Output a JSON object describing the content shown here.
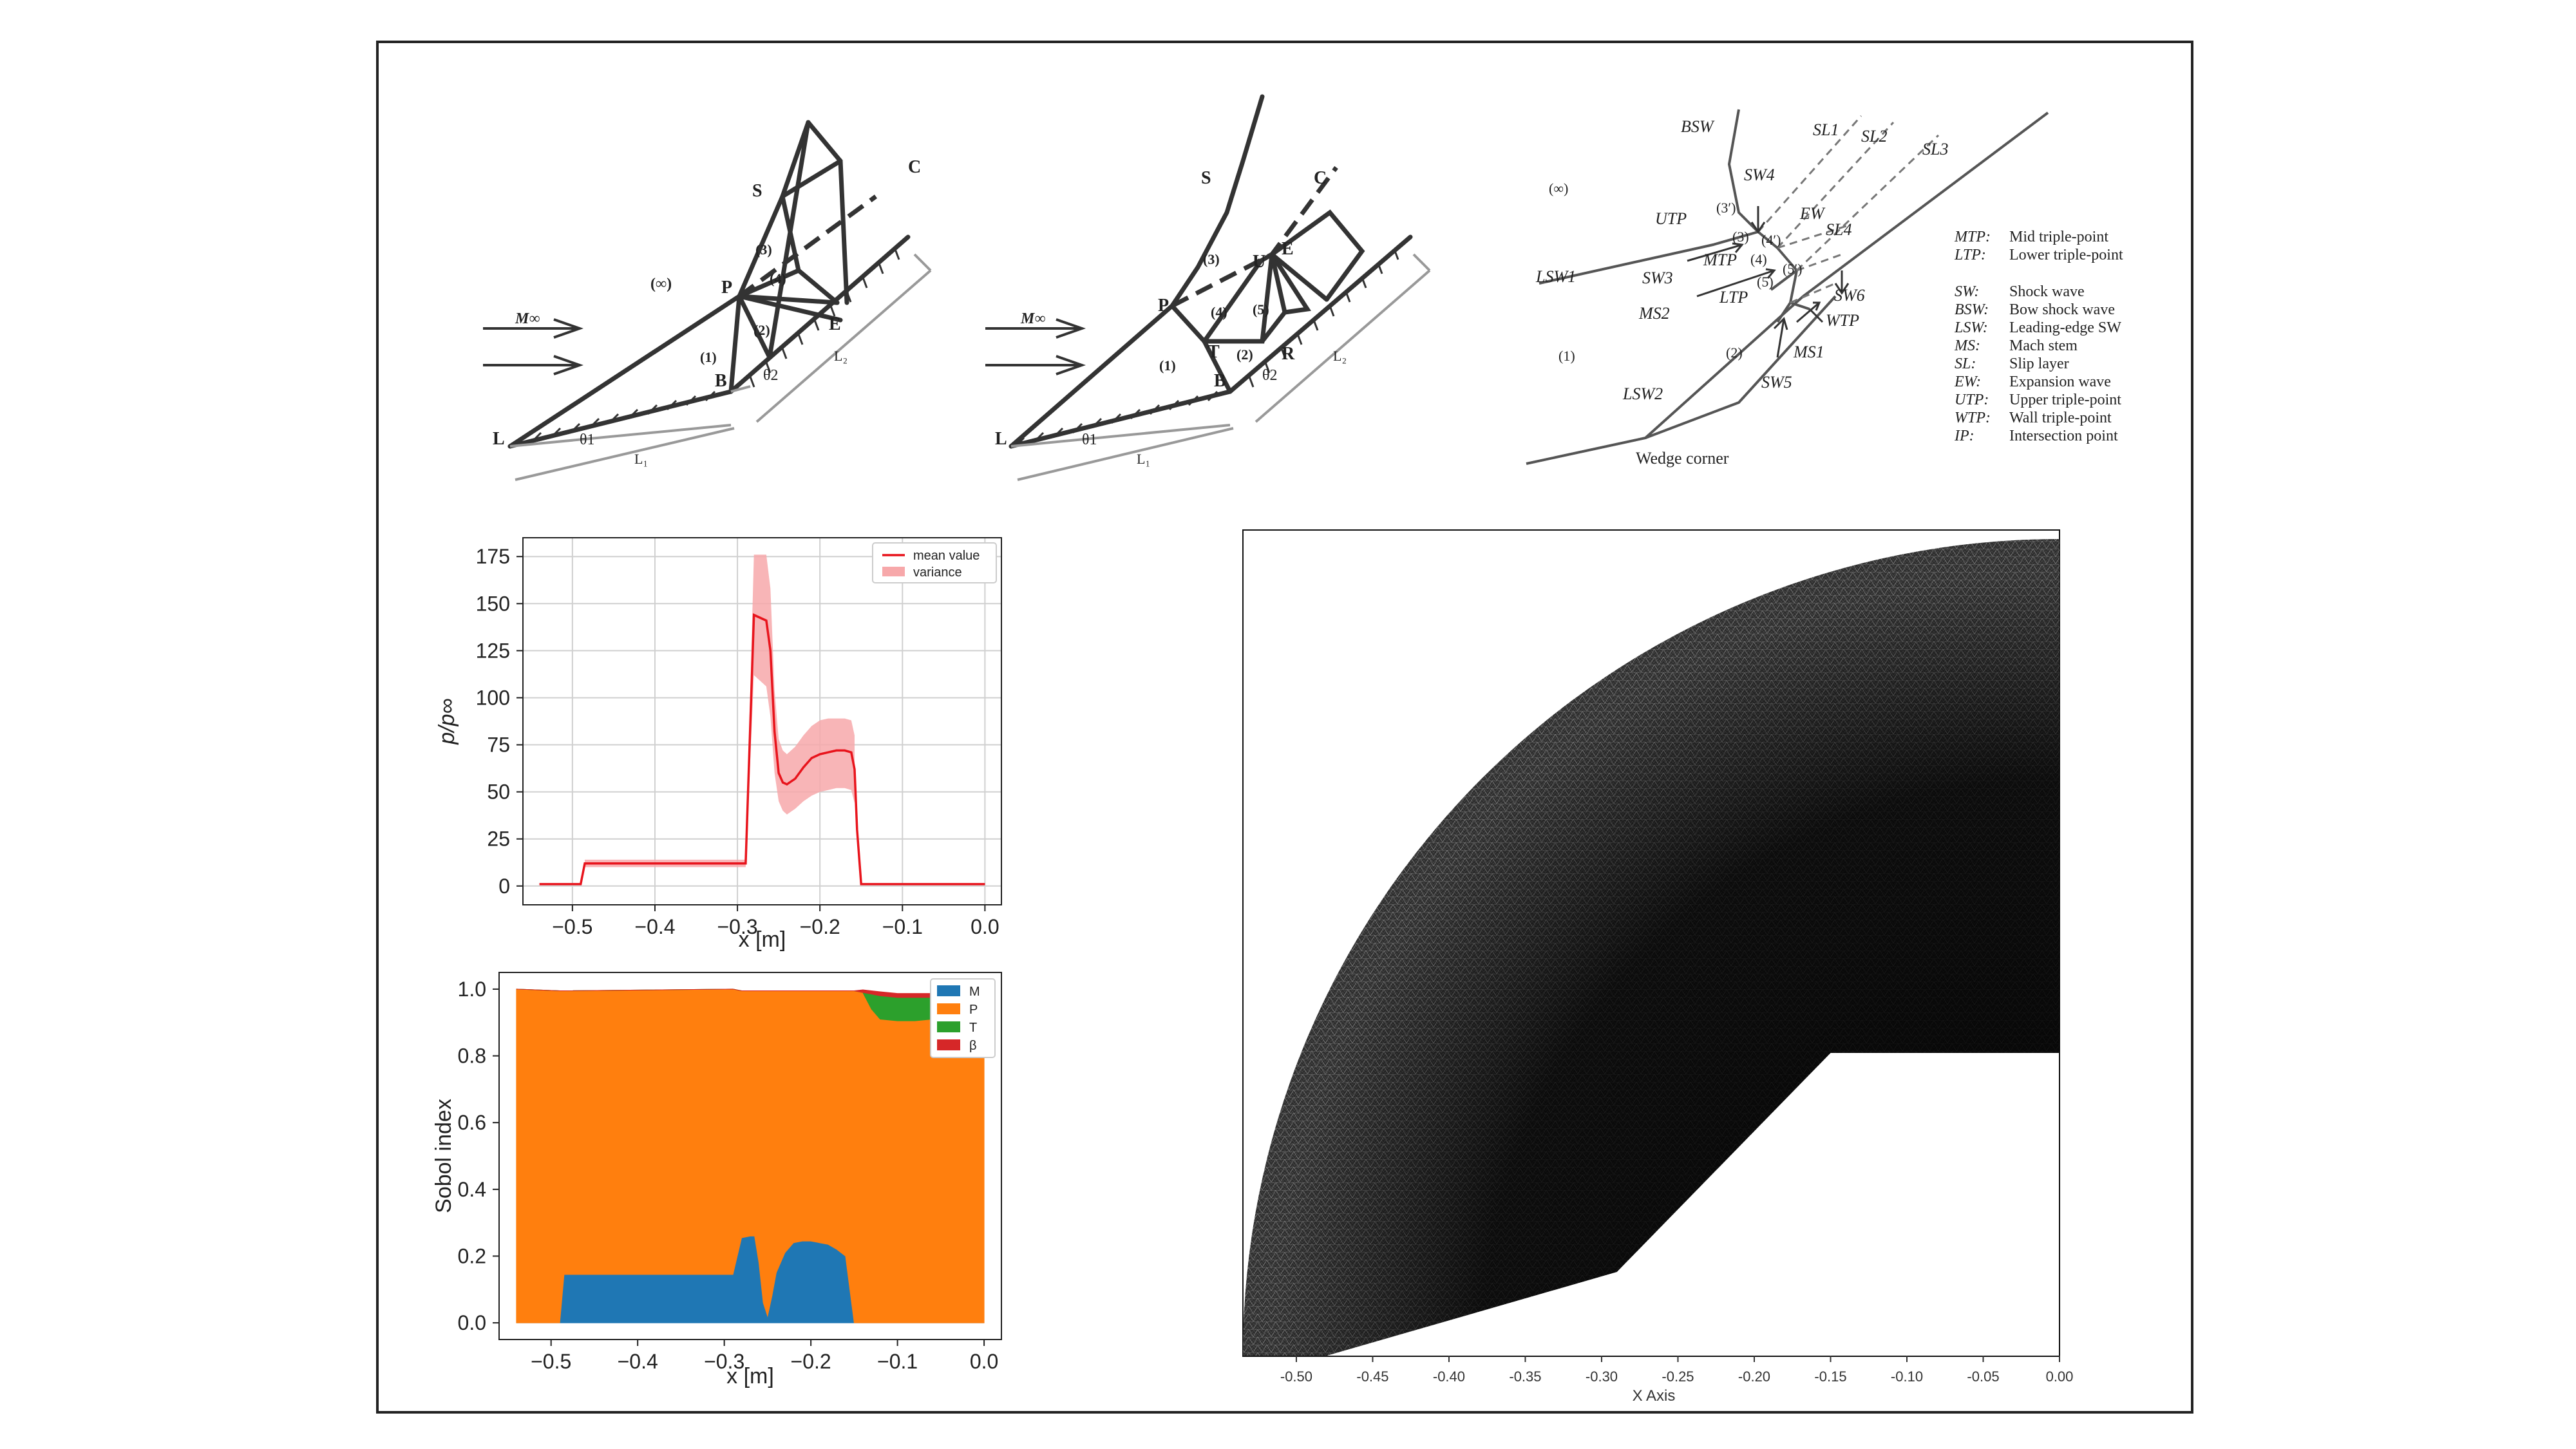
{
  "diagram1": {
    "labels": {
      "S": "S",
      "C": "C",
      "P": "P",
      "E": "E",
      "B": "B",
      "L": "L",
      "r3": "(3)",
      "r4": "(4)",
      "r1": "(1)",
      "r2": "(2)",
      "inf": "(∞)",
      "minf": "M∞",
      "theta1": "θ1",
      "theta2": "θ2",
      "L1": "L₁",
      "L2": "L₂"
    }
  },
  "diagram2": {
    "labels": {
      "S": "S",
      "C": "C",
      "P": "P",
      "U": "U",
      "E": "E",
      "T": "T",
      "R": "R",
      "B": "B",
      "L": "L",
      "r3": "(3)",
      "r4": "(4)",
      "r5": "(5)",
      "r1": "(1)",
      "r2": "(2)",
      "inf": "(∞)",
      "minf": "M∞",
      "theta1": "θ1",
      "theta2": "θ2",
      "L1": "L₁",
      "L2": "L₂"
    }
  },
  "diagram3": {
    "labels": {
      "BSW": "BSW",
      "SW4": "SW4",
      "SL1": "SL1",
      "SL2": "SL2",
      "SL3": "SL3",
      "inf": "(∞)",
      "UTP": "UTP",
      "r3p": "(3′)",
      "r4p": "(4′)",
      "EW": "EW",
      "SL4": "SL4",
      "r3": "(3)",
      "r4": "(4)",
      "SW3": "SW3",
      "MTP": "MTP",
      "LSW1": "LSW1",
      "MS2": "MS2",
      "LTP": "LTP",
      "r5": "(5)",
      "r5p": "(5′)",
      "SW6": "SW6",
      "WTP": "WTP",
      "r1": "(1)",
      "r2": "(2)",
      "MS1": "MS1",
      "SW5": "SW5",
      "LSW2": "LSW2",
      "wedge": "Wedge corner"
    },
    "legend": [
      {
        "abbr": "MTP:",
        "desc": "Mid triple-point"
      },
      {
        "abbr": "LTP:",
        "desc": "Lower triple-point"
      },
      {
        "abbr": "SW:",
        "desc": "Shock wave"
      },
      {
        "abbr": "BSW:",
        "desc": "Bow shock wave"
      },
      {
        "abbr": "LSW:",
        "desc": "Leading-edge SW"
      },
      {
        "abbr": "MS:",
        "desc": "Mach stem"
      },
      {
        "abbr": "SL:",
        "desc": "Slip layer"
      },
      {
        "abbr": "EW:",
        "desc": "Expansion wave"
      },
      {
        "abbr": "UTP:",
        "desc": "Upper triple-point"
      },
      {
        "abbr": "WTP:",
        "desc": "Wall triple-point"
      },
      {
        "abbr": "IP:",
        "desc": "Intersection point"
      }
    ]
  },
  "chart_data": [
    {
      "type": "line",
      "xlabel": "x [m]",
      "ylabel": "p/p∞",
      "xlim": [
        -0.56,
        0.02
      ],
      "ylim": [
        -10,
        185
      ],
      "xticks": [
        "−0.5",
        "−0.4",
        "−0.3",
        "−0.2",
        "−0.1",
        "0.0"
      ],
      "yticks": [
        "0",
        "25",
        "50",
        "75",
        "100",
        "125",
        "150",
        "175"
      ],
      "grid": true,
      "legend_position": "top-right",
      "series": [
        {
          "name": "mean value",
          "color": "#e8141c",
          "x": [
            -0.54,
            -0.49,
            -0.485,
            -0.295,
            -0.29,
            -0.28,
            -0.265,
            -0.26,
            -0.255,
            -0.25,
            -0.245,
            -0.24,
            -0.23,
            -0.22,
            -0.21,
            -0.2,
            -0.19,
            -0.18,
            -0.17,
            -0.162,
            -0.158,
            -0.155,
            -0.15,
            0.0
          ],
          "y": [
            1,
            1,
            12,
            12,
            12,
            144,
            141,
            125,
            82,
            60,
            55,
            54,
            57,
            63,
            68,
            70,
            71,
            72,
            72,
            71,
            62,
            30,
            1,
            1
          ]
        },
        {
          "name": "variance",
          "color": "#f7a8aa",
          "type": "band",
          "x": [
            -0.485,
            -0.295,
            -0.29,
            -0.28,
            -0.265,
            -0.26,
            -0.255,
            -0.25,
            -0.245,
            -0.24,
            -0.23,
            -0.22,
            -0.21,
            -0.2,
            -0.19,
            -0.18,
            -0.17,
            -0.162,
            -0.158
          ],
          "lower": [
            10,
            10,
            10,
            112,
            106,
            90,
            60,
            45,
            40,
            38,
            41,
            45,
            48,
            50,
            51,
            52,
            52,
            51,
            44
          ],
          "upper": [
            14,
            14,
            14,
            176,
            176,
            158,
            104,
            78,
            72,
            70,
            74,
            80,
            85,
            88,
            89,
            89,
            89,
            88,
            80
          ]
        }
      ]
    },
    {
      "type": "area",
      "xlabel": "x [m]",
      "ylabel": "Sobol index",
      "xlim": [
        -0.56,
        0.02
      ],
      "ylim": [
        -0.05,
        1.05
      ],
      "xticks": [
        "−0.5",
        "−0.4",
        "−0.3",
        "−0.2",
        "−0.1",
        "0.0"
      ],
      "yticks": [
        "0.0",
        "0.2",
        "0.4",
        "0.6",
        "0.8",
        "1.0"
      ],
      "grid": false,
      "legend_position": "top-right",
      "x": [
        -0.54,
        -0.49,
        -0.485,
        -0.29,
        -0.28,
        -0.27,
        -0.265,
        -0.26,
        -0.255,
        -0.25,
        -0.245,
        -0.24,
        -0.23,
        -0.22,
        -0.21,
        -0.2,
        -0.19,
        -0.18,
        -0.17,
        -0.16,
        -0.155,
        -0.15,
        -0.14,
        -0.13,
        -0.12,
        -0.1,
        -0.08,
        -0.06,
        -0.04,
        -0.02,
        0.0
      ],
      "series": [
        {
          "name": "M",
          "color": "#1f77b4",
          "values": [
            0,
            0,
            0.145,
            0.145,
            0.255,
            0.26,
            0.26,
            0.18,
            0.06,
            0.02,
            0.08,
            0.15,
            0.21,
            0.24,
            0.245,
            0.245,
            0.24,
            0.235,
            0.22,
            0.2,
            0.1,
            0,
            0,
            0,
            0,
            0,
            0,
            0,
            0,
            0,
            0
          ]
        },
        {
          "name": "P",
          "color": "#ff7f0e",
          "values": [
            1.0,
            0.995,
            0.85,
            0.855,
            0.74,
            0.735,
            0.735,
            0.815,
            0.935,
            0.975,
            0.915,
            0.845,
            0.785,
            0.755,
            0.75,
            0.75,
            0.755,
            0.76,
            0.775,
            0.795,
            0.895,
            0.995,
            0.99,
            0.94,
            0.91,
            0.905,
            0.905,
            0.91,
            0.91,
            0.92,
            0.935
          ]
        },
        {
          "name": "T",
          "color": "#2ca02c",
          "values": [
            0,
            0,
            0,
            0,
            0,
            0,
            0,
            0,
            0,
            0,
            0,
            0,
            0,
            0,
            0,
            0,
            0,
            0,
            0,
            0,
            0,
            0,
            0.0,
            0.045,
            0.07,
            0.07,
            0.07,
            0.065,
            0.06,
            0.05,
            0.04
          ]
        },
        {
          "name": "β",
          "color": "#d62728",
          "values": [
            0,
            0,
            0,
            0,
            0,
            0,
            0,
            0,
            0,
            0,
            0,
            0,
            0,
            0,
            0,
            0,
            0,
            0,
            0,
            0,
            0,
            0,
            0.008,
            0.01,
            0.012,
            0.012,
            0.012,
            0.012,
            0.012,
            0.012,
            0.012
          ]
        }
      ]
    },
    {
      "type": "other",
      "xlabel": "X Axis",
      "xlim": [
        -0.535,
        0.0
      ],
      "xticks": [
        "-0.50",
        "-0.45",
        "-0.40",
        "-0.35",
        "-0.30",
        "-0.25",
        "-0.20",
        "-0.15",
        "-0.10",
        "-0.05",
        "0.00"
      ],
      "description_geometry": {
        "wedge_corner_x": -0.29,
        "step_x": -0.15
      }
    }
  ]
}
